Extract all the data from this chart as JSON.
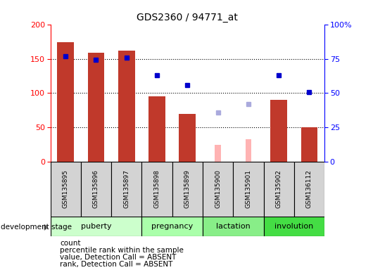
{
  "title": "GDS2360 / 94771_at",
  "samples": [
    "GSM135895",
    "GSM135896",
    "GSM135897",
    "GSM135898",
    "GSM135899",
    "GSM135900",
    "GSM135901",
    "GSM135902",
    "GSM136112"
  ],
  "count_values": [
    174,
    159,
    162,
    95,
    70,
    null,
    null,
    90,
    50
  ],
  "count_absent_values": [
    null,
    null,
    null,
    null,
    null,
    25,
    33,
    null,
    null
  ],
  "rank_values": [
    77,
    74,
    76,
    63,
    56,
    null,
    null,
    63,
    51
  ],
  "rank_absent_values": [
    null,
    null,
    null,
    null,
    null,
    36,
    42,
    null,
    null
  ],
  "stage_defs": [
    [
      "puberty",
      0,
      2,
      "#ccffcc"
    ],
    [
      "pregnancy",
      3,
      4,
      "#aaffaa"
    ],
    [
      "lactation",
      5,
      6,
      "#88ee88"
    ],
    [
      "involution",
      7,
      8,
      "#44dd44"
    ]
  ],
  "bar_color": "#c0392b",
  "bar_absent_color": "#ffb3b3",
  "rank_color": "#0000cc",
  "rank_absent_color": "#aaaadd",
  "sample_box_color": "#d3d3d3",
  "left_yticks": [
    0,
    50,
    100,
    150,
    200
  ],
  "right_yticks": [
    0,
    25,
    50,
    75,
    100
  ],
  "right_yticklabels": [
    "0",
    "25",
    "50",
    "75",
    "100%"
  ],
  "legend_items": [
    [
      "#c0392b",
      "count"
    ],
    [
      "#0000cc",
      "percentile rank within the sample"
    ],
    [
      "#ffb3b3",
      "value, Detection Call = ABSENT"
    ],
    [
      "#aaaadd",
      "rank, Detection Call = ABSENT"
    ]
  ]
}
